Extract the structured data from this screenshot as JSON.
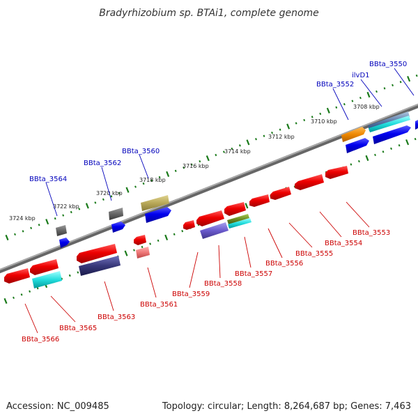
{
  "title": "Bradyrhizobium sp. BTAi1, complete genome",
  "footer": {
    "accession": "Accession: NC_009485",
    "summary": "Topology: circular; Length: 8,264,687 bp; Genes: 7,463"
  },
  "ruler_labels": [
    "3708 kbp",
    "3710 kbp",
    "3712 kbp",
    "3714 kbp",
    "3716 kbp",
    "3718 kbp",
    "3720 kbp",
    "3722 kbp",
    "3724 kbp"
  ],
  "genes_top": [
    {
      "label": "BBta_3550",
      "color": "#0000bb"
    },
    {
      "label": "ilvD1",
      "color": "#0000bb"
    },
    {
      "label": "BBta_3552",
      "color": "#0000bb"
    },
    {
      "label": "BBta_3560",
      "color": "#0000bb"
    },
    {
      "label": "BBta_3562",
      "color": "#0000bb"
    },
    {
      "label": "BBta_3564",
      "color": "#0000bb"
    }
  ],
  "genes_bottom": [
    {
      "label": "BBta_3553",
      "color": "#cc0000"
    },
    {
      "label": "BBta_3554",
      "color": "#cc0000"
    },
    {
      "label": "BBta_3555",
      "color": "#cc0000"
    },
    {
      "label": "BBta_3556",
      "color": "#cc0000"
    },
    {
      "label": "BBta_3557",
      "color": "#cc0000"
    },
    {
      "label": "BBta_3558",
      "color": "#cc0000"
    },
    {
      "label": "BBta_3559",
      "color": "#cc0000"
    },
    {
      "label": "BBta_3561",
      "color": "#cc0000"
    },
    {
      "label": "BBta_3563",
      "color": "#cc0000"
    },
    {
      "label": "BBta_3565",
      "color": "#cc0000"
    },
    {
      "label": "BBta_3566",
      "color": "#cc0000"
    }
  ],
  "colors": {
    "forward_strand": "#ee0000",
    "reverse_strand": "#0000ee",
    "backbone": "#888888",
    "ruler": "#1a7a1a"
  }
}
